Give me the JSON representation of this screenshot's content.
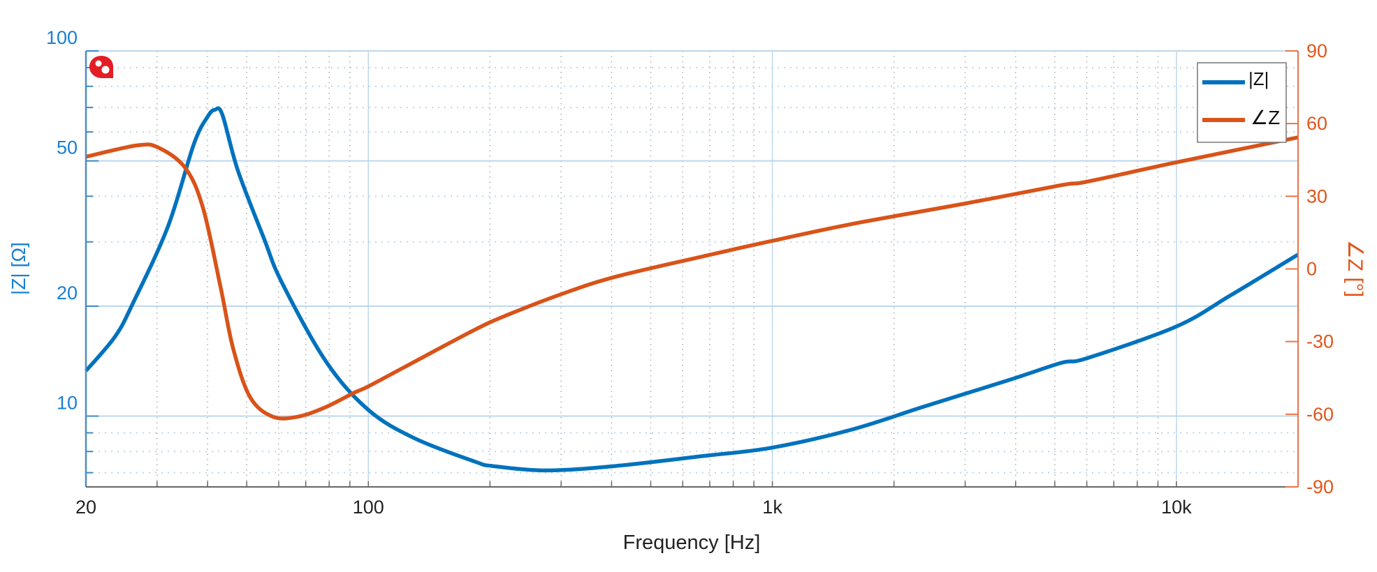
{
  "chart_data": {
    "type": "line",
    "title": "",
    "xlabel": "Frequency [Hz]",
    "ylabel_left": "|Z| [Ω]",
    "ylabel_right": "∠Z [°]",
    "x_scale": "log",
    "y_left_scale": "log",
    "xlim": [
      20,
      20000
    ],
    "ylim_left": [
      6.4,
      100
    ],
    "ylim_right": [
      -90,
      90
    ],
    "x_ticks": [
      {
        "value": 20,
        "label": "20"
      },
      {
        "value": 100,
        "label": "100"
      },
      {
        "value": 1000,
        "label": "1k"
      },
      {
        "value": 10000,
        "label": "10k"
      }
    ],
    "y_left_ticks": [
      {
        "value": 100,
        "label": "100"
      },
      {
        "value": 50,
        "label": "50"
      },
      {
        "value": 20,
        "label": "20"
      },
      {
        "value": 10,
        "label": "10"
      }
    ],
    "y_right_ticks": [
      {
        "value": 90,
        "label": "90"
      },
      {
        "value": 60,
        "label": "60"
      },
      {
        "value": 30,
        "label": "30"
      },
      {
        "value": 0,
        "label": "0"
      },
      {
        "value": -30,
        "label": "-30"
      },
      {
        "value": -60,
        "label": "-60"
      },
      {
        "value": -90,
        "label": "-90"
      }
    ],
    "grid": true,
    "legend_position": "top-right",
    "series": [
      {
        "name": "|Z|",
        "axis": "left",
        "color": "#0072bd",
        "x": [
          20,
          23.6,
          26.1,
          31.9,
          37,
          40,
          41.7,
          43.5,
          47.5,
          55.2,
          61,
          78.6,
          100,
          130,
          184,
          203,
          275,
          408,
          670,
          1000,
          1580,
          2360,
          3890,
          5200,
          6000,
          10000,
          13600,
          20000
        ],
        "y": [
          13.3,
          16.5,
          20.3,
          33,
          55.6,
          66,
          69,
          67,
          47.2,
          30.6,
          23.3,
          14.1,
          10.4,
          8.7,
          7.5,
          7.3,
          7.1,
          7.3,
          7.77,
          8.2,
          9.2,
          10.6,
          12.6,
          14,
          14.4,
          17.6,
          21.4,
          27.7
        ]
      },
      {
        "name": "∠Z",
        "axis": "right",
        "color": "#d95319",
        "x": [
          20,
          26.8,
          30.3,
          35.3,
          39,
          43.1,
          46.3,
          51,
          58,
          67,
          78.6,
          91.5,
          100,
          123,
          184,
          224,
          303,
          408,
          670,
          1000,
          1580,
          3000,
          5200,
          6000,
          10000,
          20000
        ],
        "y": [
          46.3,
          51,
          50,
          41.5,
          25,
          -7.7,
          -33,
          -53,
          -61,
          -61,
          -57,
          -51.4,
          -48.5,
          -40.5,
          -25,
          -18.6,
          -10.2,
          -3.3,
          5.1,
          11.6,
          18.6,
          27,
          34.6,
          36,
          44,
          54.3
        ]
      }
    ]
  },
  "colors": {
    "left_axis": "#1a7fd0",
    "right_axis": "#e0561b",
    "grid": "#bcd7ec"
  },
  "icon": "logo-badge-icon"
}
